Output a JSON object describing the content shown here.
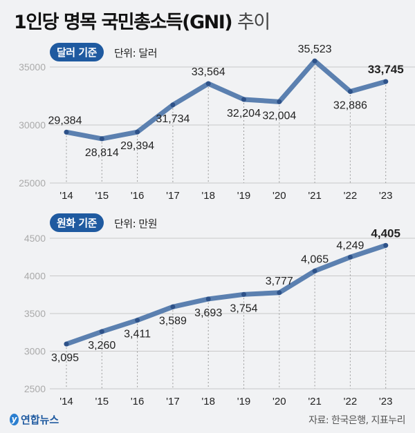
{
  "title": {
    "main": "1인당 명목 국민총소득(GNI)",
    "suffix": "추이"
  },
  "footer": {
    "logo": "연합뉴스",
    "source": "자료: 한국은행, 지표누리"
  },
  "colors": {
    "line": "#5b80b0",
    "marker": "#2e5289",
    "badge": "#1f5aa0",
    "grid": "#c8c8c8",
    "tick": "#aaaaaa"
  },
  "chart_data": [
    {
      "type": "line",
      "badge": "달러 기준",
      "unit": "단위: 달러",
      "categories": [
        "'14",
        "'15",
        "'16",
        "'17",
        "'18",
        "'19",
        "'20",
        "'21",
        "'22",
        "'23"
      ],
      "values": [
        29384,
        28814,
        29394,
        31734,
        33564,
        32204,
        32004,
        35523,
        32886,
        33745
      ],
      "labels": [
        "29,384",
        "28,814",
        "29,394",
        "31,734",
        "33,564",
        "32,204",
        "32,004",
        "35,523",
        "32,886",
        "33,745"
      ],
      "yticks": [
        "35000",
        "30000",
        "25000"
      ],
      "ytick_values": [
        35000,
        30000,
        25000
      ],
      "ylim": [
        25000,
        35000
      ],
      "grid": true
    },
    {
      "type": "line",
      "badge": "원화 기준",
      "unit": "단위: 만원",
      "categories": [
        "'14",
        "'15",
        "'16",
        "'17",
        "'18",
        "'19",
        "'20",
        "'21",
        "'22",
        "'23"
      ],
      "values": [
        3095,
        3260,
        3411,
        3589,
        3693,
        3754,
        3777,
        4065,
        4249,
        4405
      ],
      "labels": [
        "3,095",
        "3,260",
        "3,411",
        "3,589",
        "3,693",
        "3,754",
        "3,777",
        "4,065",
        "4,249",
        "4,405"
      ],
      "yticks": [
        "4500",
        "4000",
        "3500",
        "3000",
        "2500"
      ],
      "ytick_values": [
        4500,
        4000,
        3500,
        3000,
        2500
      ],
      "ylim": [
        2500,
        4500
      ],
      "grid": true
    }
  ]
}
